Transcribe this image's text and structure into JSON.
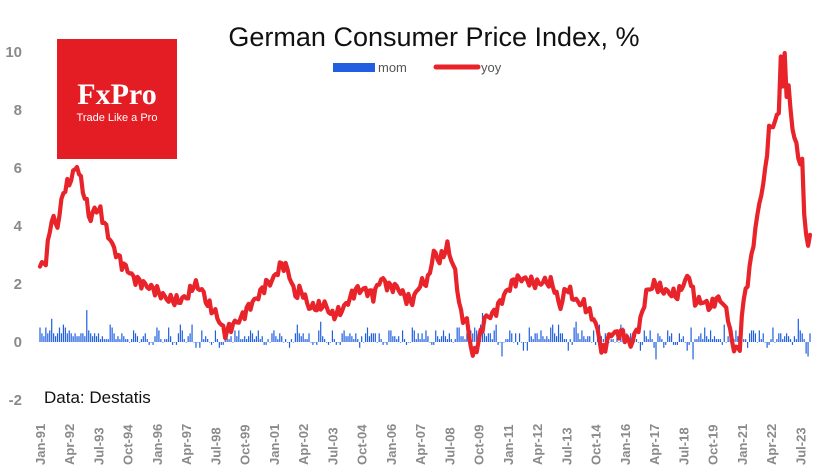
{
  "logo": {
    "brand": "FxPro",
    "tagline": "Trade Like a Pro",
    "color": "#e41c23"
  },
  "source_note": "Data: Destatis",
  "colors": {
    "mom": "#1f5fe0",
    "yoy": "#e8232a"
  },
  "chart_data": {
    "type": "bar+line",
    "title": "German Consumer Price Index, %",
    "xlabel": "",
    "ylabel": "",
    "ylim": [
      -2,
      10
    ],
    "yticks": [
      -2,
      0,
      2,
      4,
      6,
      8,
      10
    ],
    "grid": false,
    "legend_position": "top-center",
    "x_start": "1991-01",
    "x_end": "2023-12",
    "xtick_labels": [
      "Jan-91",
      "Apr-92",
      "Jul-93",
      "Oct-94",
      "Jan-96",
      "Apr-97",
      "Jul-98",
      "Oct-99",
      "Jan-01",
      "Apr-02",
      "Jul-03",
      "Oct-04",
      "Jan-06",
      "Apr-07",
      "Jul-08",
      "Oct-09",
      "Jan-11",
      "Apr-12",
      "Jul-13",
      "Oct-14",
      "Jan-16",
      "Apr-17",
      "Jul-18",
      "Oct-19",
      "Jan-21",
      "Apr-22",
      "Jul-23"
    ],
    "series": [
      {
        "name": "mom",
        "type": "bar",
        "monthly_values_from_1991_01": [
          0.5,
          0.3,
          0.2,
          0.5,
          0.3,
          0.4,
          0.8,
          0.3,
          0.2,
          0.3,
          0.5,
          0.3,
          0.6,
          0.5,
          0.3,
          0.4,
          0.3,
          0.2,
          0.3,
          0.2,
          0.2,
          0.3,
          0.3,
          0.2,
          1.1,
          0.4,
          0.3,
          0.2,
          0.3,
          0.2,
          0.3,
          0.1,
          0.2,
          0.1,
          0.1,
          0.1,
          0.6,
          0.5,
          0.3,
          0.1,
          0.2,
          0.1,
          0.3,
          0.2,
          0.1,
          0.1,
          0.0,
          0.1,
          0.4,
          0.3,
          0.2,
          0.0,
          0.1,
          0.2,
          0.3,
          0.1,
          -0.1,
          0.0,
          -0.1,
          0.2,
          0.5,
          0.4,
          0.1,
          0.0,
          0.1,
          0.1,
          0.5,
          0.2,
          -0.1,
          0.0,
          -0.1,
          0.3,
          0.6,
          0.4,
          0.1,
          0.0,
          0.2,
          0.3,
          0.6,
          0.0,
          -0.2,
          0.0,
          -0.2,
          0.4,
          0.1,
          0.2,
          0.1,
          0.0,
          -0.1,
          0.0,
          0.4,
          0.1,
          -0.2,
          -0.1,
          -0.1,
          0.2,
          0.2,
          0.1,
          0.2,
          0.0,
          0.4,
          0.2,
          0.4,
          0.1,
          0.1,
          0.2,
          0.1,
          0.2,
          0.4,
          0.3,
          0.1,
          0.2,
          0.4,
          0.1,
          0.2,
          -0.1,
          -0.1,
          0.1,
          0.0,
          0.3,
          0.4,
          0.2,
          0.1,
          0.3,
          0.2,
          0.0,
          0.1,
          0.0,
          -0.2,
          0.1,
          0.0,
          0.3,
          0.6,
          0.3,
          0.2,
          0.3,
          0.1,
          0.1,
          0.3,
          0.0,
          -0.1,
          0.0,
          -0.1,
          0.4,
          0.7,
          0.2,
          0.1,
          0.0,
          -0.1,
          0.0,
          0.4,
          0.1,
          -0.1,
          0.0,
          -0.1,
          0.3,
          0.4,
          0.2,
          0.2,
          0.3,
          0.2,
          0.1,
          0.3,
          0.1,
          -0.2,
          0.2,
          0.0,
          0.3,
          0.5,
          0.2,
          0.3,
          0.3,
          0.3,
          0.0,
          0.3,
          0.1,
          -0.1,
          0.0,
          -0.1,
          0.4,
          0.4,
          0.2,
          0.2,
          0.1,
          0.2,
          0.0,
          0.4,
          0.1,
          -0.1,
          0.0,
          0.0,
          0.5,
          0.4,
          0.1,
          0.3,
          0.1,
          0.3,
          0.1,
          0.4,
          0.2,
          0.0,
          -0.1,
          -0.1,
          0.4,
          0.2,
          0.1,
          0.2,
          0.4,
          0.2,
          0.1,
          0.3,
          0.1,
          0.0,
          0.1,
          0.5,
          0.5,
          0.2,
          0.2,
          0.1,
          0.3,
          0.1,
          0.4,
          0.3,
          0.5,
          0.4,
          0.0,
          0.6,
          1.0,
          0.3,
          0.2,
          0.3,
          0.3,
          0.1,
          0.4,
          0.6,
          -0.1,
          0.0,
          -0.5,
          0.0,
          0.1,
          0.1,
          0.4,
          0.3,
          0.0,
          0.3,
          -0.1,
          0.3,
          0.0,
          -0.3,
          0.0,
          -0.3,
          0.5,
          0.2,
          0.1,
          0.3,
          0.3,
          0.1,
          0.4,
          0.2,
          0.1,
          0.2,
          0.1,
          0.5,
          0.6,
          0.3,
          0.2,
          0.6,
          0.3,
          0.3,
          0.1,
          0.1,
          -0.3,
          0.1,
          -0.1,
          0.5,
          0.7,
          0.3,
          0.1,
          0.4,
          0.2,
          0.1,
          0.2,
          0.2,
          0.0,
          0.4,
          -0.1,
          0.6,
          0.6,
          0.2,
          0.1,
          0.3,
          0.3,
          0.0,
          0.1,
          0.1,
          0.0,
          0.2,
          0.0,
          0.6,
          0.5,
          0.1,
          0.3,
          0.2,
          0.3,
          0.3,
          0.1,
          0.1,
          0.0,
          -0.3,
          -0.1,
          0.4,
          0.2,
          0.1,
          0.4,
          0.1,
          -0.2,
          -0.6,
          0.3,
          0.2,
          0.1,
          -0.2,
          -0.1,
          0.4,
          0.2,
          0.3,
          -0.1,
          -0.1,
          -0.1,
          0.3,
          0.1,
          0.2,
          0.0,
          -0.3,
          -0.1,
          0.5,
          -0.6,
          0.1,
          0.1,
          0.2,
          0.3,
          0.1,
          0.5,
          0.2,
          0.1,
          0.4,
          0.1,
          0.2,
          0.1,
          0.1,
          0.1,
          -0.1,
          0.6,
          0.0,
          0.2,
          0.3,
          0.4,
          0.1,
          0.4,
          0.2,
          0.1,
          0.3,
          0.1,
          0.1,
          -0.2,
          0.3,
          0.4,
          0.4,
          0.3,
          0.0,
          0.4,
          0.1,
          0.3,
          0.0,
          -0.2,
          -0.1,
          0.1,
          0.5,
          0.0,
          0.1,
          0.3,
          0.3,
          0.1,
          0.2,
          0.3,
          0.2,
          0.1,
          -0.1,
          0.2,
          0.1,
          0.8,
          0.4,
          0.3,
          0.1,
          -0.4,
          -0.5,
          0.3,
          -0.1,
          -0.1,
          -0.2,
          0.1,
          0.5,
          0.8,
          0.5,
          0.5,
          0.3,
          0.1,
          0.0,
          0.3,
          0.0,
          0.3,
          0.4,
          0.0,
          0.3,
          0.9,
          0.3,
          0.8,
          0.6,
          0.8,
          0.9,
          -0.1,
          0.3,
          0.7,
          1.9,
          0.7,
          -0.5,
          0.6,
          1.4,
          1.1,
          0.5,
          0.6,
          0.4,
          0.3,
          0.3,
          0.3,
          0.4,
          0.4,
          0.0,
          -0.4,
          0.2
        ]
      },
      {
        "name": "yoy",
        "type": "line",
        "keypoints": [
          [
            "1991-01",
            2.6
          ],
          [
            "1991-04",
            2.8
          ],
          [
            "1991-07",
            4.3
          ],
          [
            "1991-10",
            4.0
          ],
          [
            "1992-01",
            5.2
          ],
          [
            "1992-04",
            5.5
          ],
          [
            "1992-08",
            6.1
          ],
          [
            "1992-12",
            5.0
          ],
          [
            "1993-03",
            4.2
          ],
          [
            "1993-05",
            4.6
          ],
          [
            "1993-08",
            4.5
          ],
          [
            "1993-12",
            3.7
          ],
          [
            "1994-03",
            3.2
          ],
          [
            "1994-07",
            2.7
          ],
          [
            "1994-10",
            2.5
          ],
          [
            "1995-01",
            2.2
          ],
          [
            "1995-06",
            2.0
          ],
          [
            "1995-12",
            1.8
          ],
          [
            "1996-06",
            1.5
          ],
          [
            "1996-12",
            1.4
          ],
          [
            "1997-05",
            1.6
          ],
          [
            "1997-08",
            2.0
          ],
          [
            "1997-12",
            1.8
          ],
          [
            "1998-03",
            1.3
          ],
          [
            "1998-07",
            1.0
          ],
          [
            "1998-12",
            0.3
          ],
          [
            "1999-04",
            0.6
          ],
          [
            "1999-08",
            0.8
          ],
          [
            "1999-12",
            1.2
          ],
          [
            "2000-04",
            1.5
          ],
          [
            "2000-09",
            2.0
          ],
          [
            "2000-12",
            2.1
          ],
          [
            "2001-05",
            2.7
          ],
          [
            "2001-08",
            2.5
          ],
          [
            "2001-12",
            1.6
          ],
          [
            "2002-03",
            1.8
          ],
          [
            "2002-07",
            1.2
          ],
          [
            "2002-12",
            1.2
          ],
          [
            "2003-03",
            1.3
          ],
          [
            "2003-07",
            0.9
          ],
          [
            "2003-12",
            1.1
          ],
          [
            "2004-04",
            1.5
          ],
          [
            "2004-07",
            1.8
          ],
          [
            "2004-12",
            1.8
          ],
          [
            "2005-04",
            1.6
          ],
          [
            "2005-08",
            2.2
          ],
          [
            "2005-12",
            1.9
          ],
          [
            "2006-04",
            1.9
          ],
          [
            "2006-09",
            1.5
          ],
          [
            "2006-12",
            1.4
          ],
          [
            "2007-04",
            2.0
          ],
          [
            "2007-08",
            2.1
          ],
          [
            "2007-11",
            3.1
          ],
          [
            "2008-02",
            2.8
          ],
          [
            "2008-06",
            3.3
          ],
          [
            "2008-10",
            2.4
          ],
          [
            "2009-01",
            0.9
          ],
          [
            "2009-04",
            0.7
          ],
          [
            "2009-07",
            -0.5
          ],
          [
            "2009-10",
            0.0
          ],
          [
            "2010-01",
            0.8
          ],
          [
            "2010-06",
            1.0
          ],
          [
            "2010-12",
            1.7
          ],
          [
            "2011-04",
            2.1
          ],
          [
            "2011-08",
            2.2
          ],
          [
            "2011-12",
            2.1
          ],
          [
            "2012-04",
            2.0
          ],
          [
            "2012-08",
            2.1
          ],
          [
            "2012-12",
            2.0
          ],
          [
            "2013-04",
            1.2
          ],
          [
            "2013-07",
            1.9
          ],
          [
            "2013-12",
            1.4
          ],
          [
            "2014-04",
            1.3
          ],
          [
            "2014-09",
            0.8
          ],
          [
            "2014-12",
            0.2
          ],
          [
            "2015-01",
            -0.4
          ],
          [
            "2015-06",
            0.3
          ],
          [
            "2015-12",
            0.3
          ],
          [
            "2016-04",
            -0.1
          ],
          [
            "2016-09",
            0.7
          ],
          [
            "2016-12",
            1.7
          ],
          [
            "2017-04",
            2.0
          ],
          [
            "2017-08",
            1.8
          ],
          [
            "2017-12",
            1.7
          ],
          [
            "2018-04",
            1.6
          ],
          [
            "2018-07",
            2.0
          ],
          [
            "2018-10",
            2.3
          ],
          [
            "2019-01",
            1.4
          ],
          [
            "2019-05",
            1.4
          ],
          [
            "2019-09",
            1.2
          ],
          [
            "2019-12",
            1.5
          ],
          [
            "2020-03",
            1.4
          ],
          [
            "2020-06",
            0.9
          ],
          [
            "2020-08",
            -0.1
          ],
          [
            "2020-12",
            -0.3
          ],
          [
            "2021-01",
            1.0
          ],
          [
            "2021-05",
            2.5
          ],
          [
            "2021-08",
            3.9
          ],
          [
            "2021-11",
            5.2
          ],
          [
            "2021-12",
            5.3
          ],
          [
            "2022-03",
            7.3
          ],
          [
            "2022-06",
            7.6
          ],
          [
            "2022-08",
            7.9
          ],
          [
            "2022-09",
            10.0
          ],
          [
            "2022-10",
            10.4
          ],
          [
            "2022-11",
            10.0
          ],
          [
            "2022-12",
            8.6
          ],
          [
            "2023-01",
            8.7
          ],
          [
            "2023-03",
            7.4
          ],
          [
            "2023-06",
            6.4
          ],
          [
            "2023-08",
            6.1
          ],
          [
            "2023-09",
            4.5
          ],
          [
            "2023-10",
            3.8
          ],
          [
            "2023-11",
            3.2
          ],
          [
            "2023-12",
            3.7
          ]
        ]
      }
    ]
  }
}
